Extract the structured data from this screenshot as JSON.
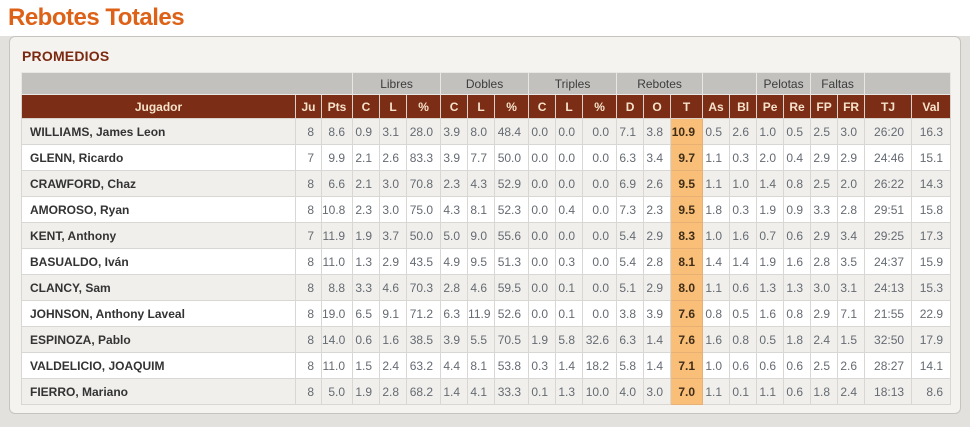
{
  "page": {
    "title": "Rebotes Totales",
    "section_title": "PROMEDIOS"
  },
  "colors": {
    "title_orange": "#dd6217",
    "header_maroon": "#7c2d15",
    "section_maroon": "#7b2a10",
    "highlight_orange": "#f9be77",
    "group_header_gray": "#c3c1be"
  },
  "table": {
    "groups": [
      {
        "label": "",
        "span": 3
      },
      {
        "label": "Libres",
        "span": 3
      },
      {
        "label": "Dobles",
        "span": 3
      },
      {
        "label": "Triples",
        "span": 3
      },
      {
        "label": "Rebotes",
        "span": 3
      },
      {
        "label": "",
        "span": 2
      },
      {
        "label": "Pelotas",
        "span": 2
      },
      {
        "label": "Faltas",
        "span": 2
      },
      {
        "label": "",
        "span": 2
      }
    ],
    "columns": [
      "Jugador",
      "Ju",
      "Pts",
      "C",
      "L",
      "%",
      "C",
      "L",
      "%",
      "C",
      "L",
      "%",
      "D",
      "O",
      "T",
      "As",
      "Bl",
      "Pe",
      "Re",
      "FP",
      "FR",
      "TJ",
      "Val"
    ],
    "highlight_value_index": 13,
    "rows": [
      {
        "player": "WILLIAMS, James Leon",
        "values": [
          "8",
          "8.6",
          "0.9",
          "3.1",
          "28.0",
          "3.9",
          "8.0",
          "48.4",
          "0.0",
          "0.0",
          "0.0",
          "7.1",
          "3.8",
          "10.9",
          "0.5",
          "2.6",
          "1.0",
          "0.5",
          "2.5",
          "3.0",
          "26:20",
          "16.3"
        ]
      },
      {
        "player": "GLENN, Ricardo",
        "values": [
          "7",
          "9.9",
          "2.1",
          "2.6",
          "83.3",
          "3.9",
          "7.7",
          "50.0",
          "0.0",
          "0.0",
          "0.0",
          "6.3",
          "3.4",
          "9.7",
          "1.1",
          "0.3",
          "2.0",
          "0.4",
          "2.9",
          "2.9",
          "24:46",
          "15.1"
        ]
      },
      {
        "player": "CRAWFORD, Chaz",
        "values": [
          "8",
          "6.6",
          "2.1",
          "3.0",
          "70.8",
          "2.3",
          "4.3",
          "52.9",
          "0.0",
          "0.0",
          "0.0",
          "6.9",
          "2.6",
          "9.5",
          "1.1",
          "1.0",
          "1.4",
          "0.8",
          "2.5",
          "2.0",
          "26:22",
          "14.3"
        ]
      },
      {
        "player": "AMOROSO, Ryan",
        "values": [
          "8",
          "10.8",
          "2.3",
          "3.0",
          "75.0",
          "4.3",
          "8.1",
          "52.3",
          "0.0",
          "0.4",
          "0.0",
          "7.3",
          "2.3",
          "9.5",
          "1.8",
          "0.3",
          "1.9",
          "0.9",
          "3.3",
          "2.8",
          "29:51",
          "15.8"
        ]
      },
      {
        "player": "KENT, Anthony",
        "values": [
          "7",
          "11.9",
          "1.9",
          "3.7",
          "50.0",
          "5.0",
          "9.0",
          "55.6",
          "0.0",
          "0.0",
          "0.0",
          "5.4",
          "2.9",
          "8.3",
          "1.0",
          "1.6",
          "0.7",
          "0.6",
          "2.9",
          "3.4",
          "29:25",
          "17.3"
        ]
      },
      {
        "player": "BASUALDO, Iván",
        "values": [
          "8",
          "11.0",
          "1.3",
          "2.9",
          "43.5",
          "4.9",
          "9.5",
          "51.3",
          "0.0",
          "0.3",
          "0.0",
          "5.4",
          "2.8",
          "8.1",
          "1.4",
          "1.4",
          "1.9",
          "1.6",
          "2.8",
          "3.5",
          "24:37",
          "15.9"
        ]
      },
      {
        "player": "CLANCY, Sam",
        "values": [
          "8",
          "8.8",
          "3.3",
          "4.6",
          "70.3",
          "2.8",
          "4.6",
          "59.5",
          "0.0",
          "0.1",
          "0.0",
          "5.1",
          "2.9",
          "8.0",
          "1.1",
          "0.6",
          "1.3",
          "1.3",
          "3.0",
          "3.1",
          "24:13",
          "15.3"
        ]
      },
      {
        "player": "JOHNSON, Anthony Laveal",
        "values": [
          "8",
          "19.0",
          "6.5",
          "9.1",
          "71.2",
          "6.3",
          "11.9",
          "52.6",
          "0.0",
          "0.1",
          "0.0",
          "3.8",
          "3.9",
          "7.6",
          "0.8",
          "0.5",
          "1.6",
          "0.8",
          "2.9",
          "7.1",
          "21:55",
          "22.9"
        ]
      },
      {
        "player": "ESPINOZA, Pablo",
        "values": [
          "8",
          "14.0",
          "0.6",
          "1.6",
          "38.5",
          "3.9",
          "5.5",
          "70.5",
          "1.9",
          "5.8",
          "32.6",
          "6.3",
          "1.4",
          "7.6",
          "1.6",
          "0.8",
          "0.5",
          "1.8",
          "2.4",
          "1.5",
          "32:50",
          "17.9"
        ]
      },
      {
        "player": "VALDELICIO, JOAQUIM",
        "values": [
          "8",
          "11.0",
          "1.5",
          "2.4",
          "63.2",
          "4.4",
          "8.1",
          "53.8",
          "0.3",
          "1.4",
          "18.2",
          "5.8",
          "1.4",
          "7.1",
          "1.0",
          "0.6",
          "0.6",
          "0.6",
          "2.5",
          "2.6",
          "28:27",
          "14.1"
        ]
      },
      {
        "player": "FIERRO, Mariano",
        "values": [
          "8",
          "5.0",
          "1.9",
          "2.8",
          "68.2",
          "1.4",
          "4.1",
          "33.3",
          "0.1",
          "1.3",
          "10.0",
          "4.0",
          "3.0",
          "7.0",
          "1.1",
          "0.1",
          "1.1",
          "0.6",
          "1.8",
          "2.4",
          "18:13",
          "8.6"
        ]
      }
    ]
  }
}
